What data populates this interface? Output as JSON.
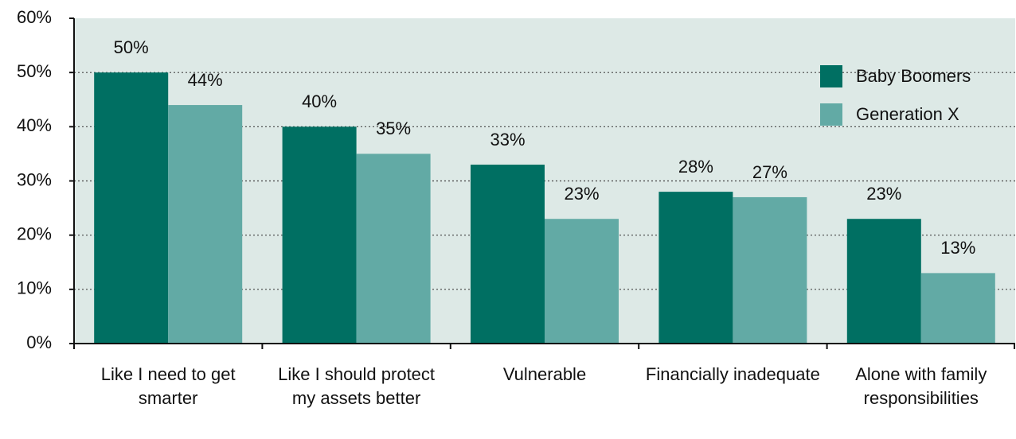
{
  "chart_data": {
    "type": "bar",
    "categories": [
      "Like I need to get smarter",
      "Like I should protect my assets better",
      "Vulnerable",
      "Financially inadequate",
      "Alone with family responsibilities"
    ],
    "series": [
      {
        "name": "Baby Boomers",
        "color": "#006f62",
        "values": [
          50,
          40,
          33,
          28,
          23
        ],
        "value_labels": [
          "50%",
          "40%",
          "33%",
          "28%",
          "23%"
        ]
      },
      {
        "name": "Generation X",
        "color": "#62aaa5",
        "values": [
          44,
          35,
          23,
          27,
          13
        ],
        "value_labels": [
          "44%",
          "35%",
          "23%",
          "27%",
          "13%"
        ]
      }
    ],
    "ylim": [
      0,
      60
    ],
    "yticks": [
      {
        "value": 0,
        "label": "0%"
      },
      {
        "value": 10,
        "label": "10%"
      },
      {
        "value": 20,
        "label": "20%"
      },
      {
        "value": 30,
        "label": "30%"
      },
      {
        "value": 40,
        "label": "40%"
      },
      {
        "value": 50,
        "label": "50%"
      },
      {
        "value": 60,
        "label": "60%"
      }
    ],
    "grid": true,
    "legend": "upper right"
  }
}
